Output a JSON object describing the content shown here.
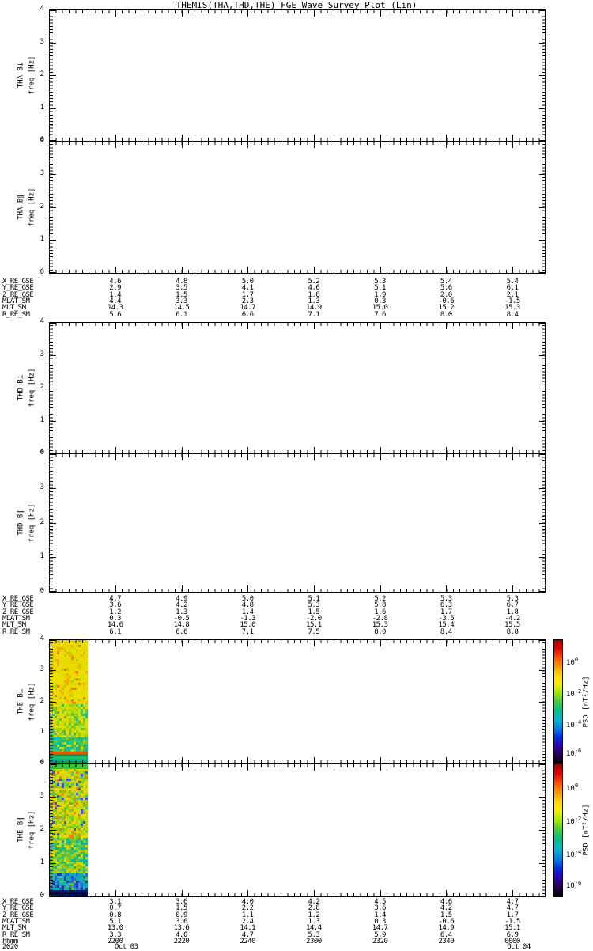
{
  "title": "THEMIS(THA,THD,THE) FGE Wave Survey Plot (Lin)",
  "chart_data": {
    "type": "heatmap",
    "title": "THEMIS(THA,THD,THE) FGE Wave Survey Plot (Lin)",
    "time_axis": {
      "label": "hhmm",
      "year": "2020",
      "tick_labels": [
        "2200",
        "2220",
        "2240",
        "2300",
        "2320",
        "2340",
        "0000"
      ],
      "start_date_label": "Oct 03",
      "end_date_label": "Oct 04"
    },
    "panels": [
      {
        "id": "tha-bperp",
        "label": "THA B⊥",
        "ylabel": "freq [Hz]",
        "ylim": [
          0,
          4
        ],
        "yticks": [
          "0",
          "1",
          "2",
          "3",
          "4"
        ],
        "content": "blank"
      },
      {
        "id": "tha-bpar",
        "label": "THA B∥",
        "ylabel": "freq [Hz]",
        "ylim": [
          0,
          4
        ],
        "yticks": [
          "0",
          "1",
          "2",
          "3",
          "4"
        ],
        "content": "blank"
      },
      {
        "id": "thd-bperp",
        "label": "THD B⊥",
        "ylabel": "freq [Hz]",
        "ylim": [
          0,
          4
        ],
        "yticks": [
          "0",
          "1",
          "2",
          "3",
          "4"
        ],
        "content": "blank"
      },
      {
        "id": "thd-bpar",
        "label": "THD B∥",
        "ylabel": "freq [Hz]",
        "ylim": [
          0,
          4
        ],
        "yticks": [
          "0",
          "1",
          "2",
          "3",
          "4"
        ],
        "content": "blank"
      },
      {
        "id": "the-bperp",
        "label": "THE B⊥",
        "ylabel": "freq [Hz]",
        "ylim": [
          0,
          4
        ],
        "yticks": [
          "0",
          "1",
          "2",
          "3",
          "4"
        ],
        "content": "spectrogram",
        "colorbar": true,
        "spectrogram": {
          "time_extent_fraction": 0.077,
          "seed": 42,
          "bands": [
            {
              "from": 0.0,
              "to": 0.52,
              "colors": [
                "#ecdf00",
                "#e6da00",
                "#efcf00",
                "#f0b000",
                "#ef7f00",
                "#e6e000",
                "#cede00",
                "#a8d600"
              ],
              "weights": [
                30,
                22,
                12,
                8,
                6,
                12,
                6,
                4
              ]
            },
            {
              "from": 0.52,
              "to": 0.78,
              "colors": [
                "#dedd00",
                "#c4da00",
                "#92cf18",
                "#5ec53c",
                "#e6d800",
                "#2fbd6e"
              ],
              "weights": [
                28,
                22,
                16,
                12,
                14,
                8
              ]
            },
            {
              "from": 0.78,
              "to": 0.9,
              "colors": [
                "#4cc44c",
                "#2abd78",
                "#00bba6",
                "#83cd16",
                "#c8d800"
              ],
              "weights": [
                26,
                24,
                18,
                18,
                14
              ]
            },
            {
              "from": 0.9,
              "to": 0.93,
              "colors": [
                "#e05800",
                "#d87000"
              ],
              "weights": [
                70,
                30
              ],
              "per_row": true
            },
            {
              "from": 0.93,
              "to": 1.01,
              "colors": [
                "#0a9a50",
                "#00b4ae",
                "#23bd6a",
                "#048c74"
              ],
              "weights": [
                30,
                30,
                25,
                15
              ],
              "per_row": true
            }
          ]
        }
      },
      {
        "id": "the-bpar",
        "label": "THE B∥",
        "ylabel": "freq [Hz]",
        "ylim": [
          0,
          4
        ],
        "yticks": [
          "0",
          "1",
          "2",
          "3",
          "4"
        ],
        "content": "spectrogram",
        "colorbar": true,
        "spectrogram": {
          "time_extent_fraction": 0.077,
          "seed": 7,
          "bands": [
            {
              "from": 0.0,
              "to": 0.03,
              "colors": [
                "#35c23c",
                "#4cc830"
              ],
              "weights": [
                60,
                40
              ],
              "per_row": true
            },
            {
              "from": 0.03,
              "to": 0.55,
              "colors": [
                "#e2da00",
                "#d6d600",
                "#b3d200",
                "#8bcb1e",
                "#5fc343",
                "#ef8000",
                "#3b57de"
              ],
              "weights": [
                26,
                20,
                18,
                12,
                10,
                8,
                6
              ]
            },
            {
              "from": 0.55,
              "to": 0.82,
              "colors": [
                "#9ccd0e",
                "#64c43c",
                "#33bd6d",
                "#0cb795",
                "#d2d600"
              ],
              "weights": [
                22,
                22,
                20,
                16,
                20
              ]
            },
            {
              "from": 0.82,
              "to": 0.95,
              "colors": [
                "#00b2ae",
                "#25a6c4",
                "#2f62d8",
                "#1e39a8",
                "#4cc44c"
              ],
              "weights": [
                30,
                22,
                18,
                14,
                16
              ]
            },
            {
              "from": 0.95,
              "to": 1.01,
              "colors": [
                "#1430a0",
                "#0c1470",
                "#0a66c2",
                "#00a8b4",
                "#061040"
              ],
              "weights": [
                25,
                25,
                20,
                20,
                10
              ],
              "per_row": true
            }
          ]
        }
      }
    ],
    "colorbar": {
      "label": "PSD [nT²/Hz]",
      "ticks": [
        {
          "mantissa": "10",
          "exp": "0",
          "frac": 0.18
        },
        {
          "mantissa": "10",
          "exp": "-2",
          "frac": 0.43
        },
        {
          "mantissa": "10",
          "exp": "-4",
          "frac": 0.68
        },
        {
          "mantissa": "10",
          "exp": "-6",
          "frac": 0.91
        }
      ],
      "gradient": [
        "#a00000",
        "#e00000",
        "#ff5000",
        "#ff9800",
        "#ffd800",
        "#f0f000",
        "#a0e600",
        "#40cc40",
        "#00c090",
        "#00b8d0",
        "#0080e8",
        "#0030e0",
        "#3000b0",
        "#280050",
        "#000000"
      ]
    },
    "ephemeris_blocks": [
      {
        "spacecraft": "THA",
        "row_labels": [
          "X_RE_GSE",
          "Y_RE_GSE",
          "Z_RE_GSE",
          "MLAT_SM",
          "MLT_SM",
          "R_RE_SM"
        ],
        "rows": [
          [
            "4.6",
            "4.8",
            "5.0",
            "5.2",
            "5.3",
            "5.4",
            "5.4"
          ],
          [
            "2.9",
            "3.5",
            "4.1",
            "4.6",
            "5.1",
            "5.6",
            "6.1"
          ],
          [
            "1.4",
            "1.5",
            "1.7",
            "1.8",
            "1.9",
            "2.0",
            "2.1"
          ],
          [
            "4.4",
            "3.3",
            "2.3",
            "1.3",
            "0.3",
            "-0.6",
            "-1.5"
          ],
          [
            "14.3",
            "14.5",
            "14.7",
            "14.9",
            "15.0",
            "15.2",
            "15.3"
          ],
          [
            "5.6",
            "6.1",
            "6.6",
            "7.1",
            "7.6",
            "8.0",
            "8.4"
          ]
        ]
      },
      {
        "spacecraft": "THD",
        "row_labels": [
          "X_RE_GSE",
          "Y_RE_GSE",
          "Z_RE_GSE",
          "MLAT_SM",
          "MLT_SM",
          "R_RE_SM"
        ],
        "rows": [
          [
            "4.7",
            "4.9",
            "5.0",
            "5.1",
            "5.2",
            "5.3",
            "5.3"
          ],
          [
            "3.6",
            "4.2",
            "4.8",
            "5.3",
            "5.8",
            "6.3",
            "6.7"
          ],
          [
            "1.2",
            "1.3",
            "1.4",
            "1.5",
            "1.6",
            "1.7",
            "1.8"
          ],
          [
            "0.3",
            "-0.5",
            "-1.3",
            "-2.0",
            "-2.8",
            "-3.5",
            "-4.2"
          ],
          [
            "14.6",
            "14.8",
            "15.0",
            "15.1",
            "15.3",
            "15.4",
            "15.5"
          ],
          [
            "6.1",
            "6.6",
            "7.1",
            "7.5",
            "8.0",
            "8.4",
            "8.8"
          ]
        ]
      },
      {
        "spacecraft": "THE",
        "row_labels": [
          "X_RE_GSE",
          "Y_RE_GSE",
          "Z_RE_GSE",
          "MLAT_SM",
          "MLT_SM",
          "R_RE_SM"
        ],
        "rows": [
          [
            "3.1",
            "3.6",
            "4.0",
            "4.2",
            "4.5",
            "4.6",
            "4.7"
          ],
          [
            "0.7",
            "1.5",
            "2.2",
            "2.8",
            "3.6",
            "4.2",
            "4.7"
          ],
          [
            "0.8",
            "0.9",
            "1.1",
            "1.2",
            "1.4",
            "1.5",
            "1.7"
          ],
          [
            "5.1",
            "3.6",
            "2.4",
            "1.3",
            "0.3",
            "-0.6",
            "-1.5"
          ],
          [
            "13.0",
            "13.6",
            "14.1",
            "14.4",
            "14.7",
            "14.9",
            "15.1"
          ],
          [
            "3.3",
            "4.0",
            "4.7",
            "5.3",
            "5.9",
            "6.4",
            "6.9"
          ]
        ],
        "hhmm_row": [
          "2200",
          "2220",
          "2240",
          "2300",
          "2320",
          "2340",
          "0000"
        ]
      }
    ]
  }
}
